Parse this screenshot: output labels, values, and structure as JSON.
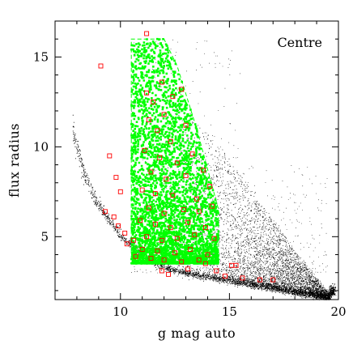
{
  "chart_data": {
    "type": "scatter",
    "title": "",
    "panel_label": "Centre",
    "xlabel": "g mag auto",
    "ylabel": "flux radius",
    "xlim": [
      7,
      20
    ],
    "ylim": [
      1.5,
      17
    ],
    "xticks": [
      10,
      15,
      20
    ],
    "yticks": [
      5,
      10,
      15
    ],
    "grid": false,
    "series": [
      {
        "kind": "all-sources",
        "color": "#000000",
        "marker": "dot",
        "stellar_locus": [
          [
            7.8,
            11.0
          ],
          [
            8.3,
            8.6
          ],
          [
            8.9,
            6.9
          ],
          [
            9.5,
            5.9
          ],
          [
            10.0,
            5.1
          ],
          [
            10.5,
            4.5
          ],
          [
            11.0,
            4.0
          ],
          [
            11.5,
            3.6
          ],
          [
            12.0,
            3.3
          ],
          [
            12.5,
            3.1
          ],
          [
            13.0,
            3.0
          ],
          [
            14.0,
            2.8
          ],
          [
            15.0,
            2.6
          ],
          [
            16.0,
            2.4
          ],
          [
            17.0,
            2.2
          ],
          [
            18.0,
            2.0
          ],
          [
            19.0,
            1.8
          ],
          [
            19.6,
            1.7
          ]
        ],
        "galaxy_cloud": {
          "x_range": [
            12.0,
            19.8
          ],
          "y_range": [
            1.8,
            8.5
          ],
          "peak": [
            16.5,
            3.3
          ]
        }
      },
      {
        "kind": "selected-members",
        "color": "#00ff00",
        "marker": "small-square",
        "region": [
          [
            10.5,
            3.5
          ],
          [
            14.5,
            3.5
          ],
          [
            14.5,
            6.5
          ],
          [
            13.5,
            11.0
          ],
          [
            12.6,
            14.5
          ],
          [
            12.0,
            16.0
          ],
          [
            10.5,
            16.0
          ]
        ]
      },
      {
        "kind": "highlighted",
        "color": "#ff0000",
        "marker": "open-square",
        "points": [
          [
            9.1,
            14.5
          ],
          [
            11.2,
            16.3
          ],
          [
            9.5,
            9.5
          ],
          [
            9.8,
            8.3
          ],
          [
            10.0,
            7.5
          ],
          [
            9.3,
            6.4
          ],
          [
            9.7,
            6.1
          ],
          [
            9.9,
            5.6
          ],
          [
            10.2,
            5.2
          ],
          [
            10.6,
            4.8
          ],
          [
            11.2,
            13.0
          ],
          [
            11.5,
            12.5
          ],
          [
            11.9,
            13.6
          ],
          [
            12.4,
            12.8
          ],
          [
            12.8,
            13.2
          ],
          [
            11.3,
            11.5
          ],
          [
            12.0,
            11.8
          ],
          [
            11.7,
            10.9
          ],
          [
            12.3,
            10.3
          ],
          [
            13.0,
            11.2
          ],
          [
            11.1,
            9.8
          ],
          [
            11.8,
            9.4
          ],
          [
            12.6,
            9.1
          ],
          [
            13.3,
            9.6
          ],
          [
            11.4,
            8.6
          ],
          [
            12.1,
            8.2
          ],
          [
            13.0,
            8.4
          ],
          [
            13.8,
            8.7
          ],
          [
            11.0,
            7.6
          ],
          [
            11.6,
            7.4
          ],
          [
            12.4,
            7.3
          ],
          [
            13.5,
            7.1
          ],
          [
            14.1,
            7.8
          ],
          [
            11.3,
            6.6
          ],
          [
            12.0,
            6.3
          ],
          [
            12.9,
            6.5
          ],
          [
            13.6,
            6.4
          ],
          [
            14.2,
            6.7
          ],
          [
            10.9,
            5.9
          ],
          [
            11.6,
            5.7
          ],
          [
            12.3,
            5.5
          ],
          [
            13.1,
            5.8
          ],
          [
            13.9,
            5.5
          ],
          [
            11.2,
            5.0
          ],
          [
            11.9,
            4.8
          ],
          [
            12.6,
            4.9
          ],
          [
            13.4,
            5.1
          ],
          [
            14.3,
            4.9
          ],
          [
            11.0,
            4.3
          ],
          [
            11.7,
            4.2
          ],
          [
            12.5,
            4.1
          ],
          [
            13.2,
            4.3
          ],
          [
            14.0,
            4.0
          ],
          [
            12.0,
            3.7
          ],
          [
            12.8,
            3.6
          ],
          [
            13.6,
            3.7
          ],
          [
            10.7,
            3.9
          ],
          [
            11.4,
            3.8
          ],
          [
            13.9,
            3.5
          ],
          [
            15.1,
            3.4
          ],
          [
            15.3,
            3.4
          ],
          [
            14.8,
            2.8
          ],
          [
            15.6,
            2.7
          ],
          [
            17.0,
            2.6
          ],
          [
            16.4,
            2.6
          ],
          [
            12.2,
            2.9
          ],
          [
            11.9,
            3.1
          ],
          [
            13.1,
            3.2
          ],
          [
            14.4,
            3.1
          ],
          [
            10.3,
            4.6
          ]
        ]
      }
    ]
  }
}
